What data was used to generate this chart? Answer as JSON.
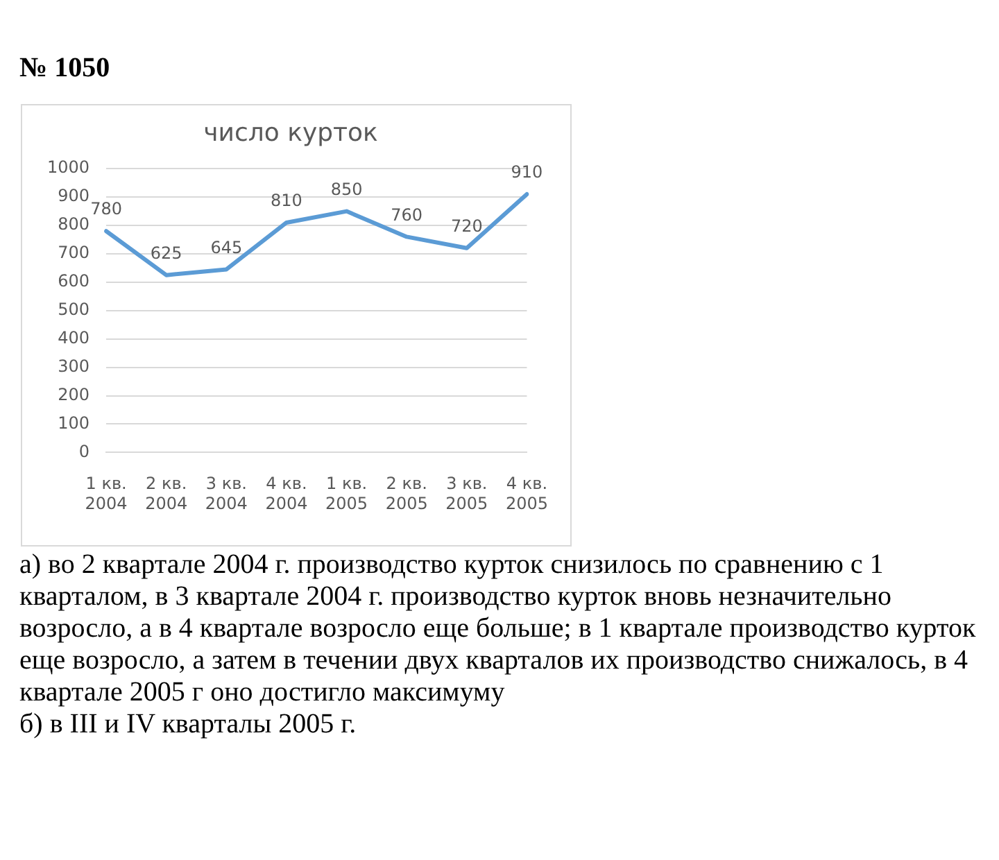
{
  "chart_data": {
    "type": "line",
    "title": "число курток",
    "categories": [
      "1 кв. 2004",
      "2 кв. 2004",
      "3 кв. 2004",
      "4 кв. 2004",
      "1 кв. 2005",
      "2 кв. 2005",
      "3 кв. 2005",
      "4 кв. 2005"
    ],
    "series": [
      {
        "color": "#5b9bd5",
        "values": [
          780,
          625,
          645,
          810,
          850,
          760,
          720,
          910
        ]
      }
    ],
    "ylim": [
      0,
      1000
    ],
    "yticks": [
      0,
      100,
      200,
      300,
      400,
      500,
      600,
      700,
      800,
      900,
      1000
    ],
    "grid": "y",
    "legend": false,
    "marker": "none",
    "line_style": "solid",
    "data_labels": true,
    "annotations": [
      "№ 1050",
      "а) во 2 квартале 2004 г. производство курток снизилось по сравнению с 1 кварталом, в 3 квартале 2004 г. производство курток вновь незначительно возросло, а в 4 квартале возросло еще больше; в 1 квартале производство курток еще возросло, а затем в течении двух кварталов их производство снижалось, в 4 квартале 2005 г оно достигло максимуму",
      "б) в III и IV кварталы 2005 г."
    ]
  }
}
